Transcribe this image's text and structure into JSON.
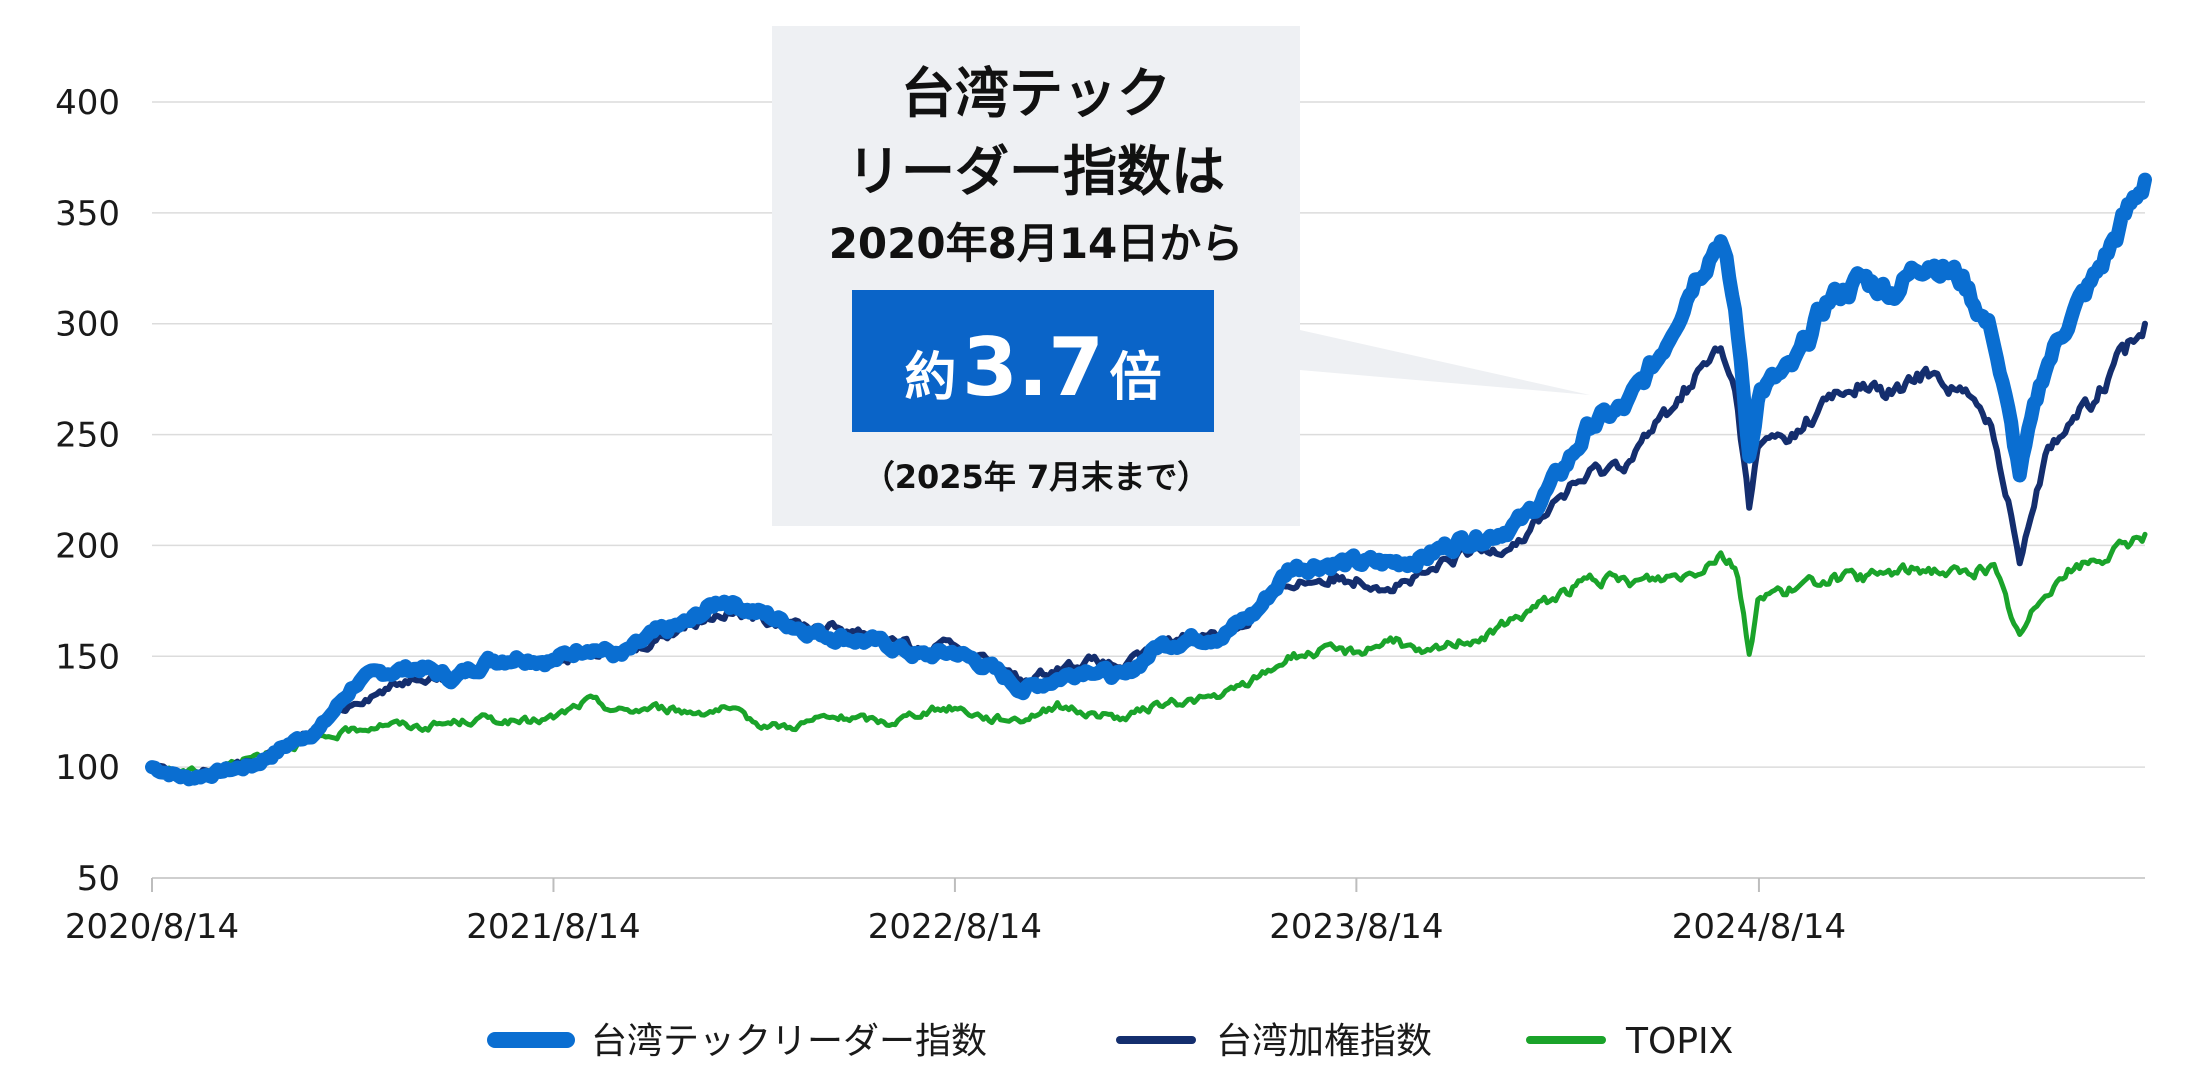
{
  "callout": {
    "line1": "台湾テック",
    "line2": "リーダー指数は",
    "line3": "2020年8月14日から",
    "badge_prefix": "約",
    "badge_value": "3.7",
    "badge_suffix": "倍",
    "note": "（2025年 7月末まで）",
    "badge_color": "#0a64c8",
    "box_color": "#eef0f3"
  },
  "chart_data": {
    "type": "line",
    "title": "",
    "xlabel": "",
    "ylabel": "",
    "ylim": [
      50,
      400
    ],
    "yticks": [
      50,
      100,
      150,
      200,
      250,
      300,
      350,
      400
    ],
    "xticks": [
      "2020/8/14",
      "2021/8/14",
      "2022/8/14",
      "2023/8/14",
      "2024/8/14"
    ],
    "x_range": [
      "2020/8/14",
      "2025/7/31"
    ],
    "grid": "horizontal",
    "legend_position": "bottom",
    "series": [
      {
        "name": "台湾テックリーダー指数",
        "color": "#0a6ed1",
        "points": [
          [
            "2020/8/14",
            100
          ],
          [
            "2020/9/15",
            95
          ],
          [
            "2020/10/15",
            98
          ],
          [
            "2020/11/15",
            101
          ],
          [
            "2020/12/15",
            110
          ],
          [
            "2021/1/15",
            118
          ],
          [
            "2021/2/15",
            138
          ],
          [
            "2021/3/15",
            143
          ],
          [
            "2021/4/15",
            145
          ],
          [
            "2021/5/15",
            140
          ],
          [
            "2021/6/15",
            148
          ],
          [
            "2021/7/15",
            150
          ],
          [
            "2021/8/14",
            148
          ],
          [
            "2021/9/15",
            155
          ],
          [
            "2021/10/15",
            150
          ],
          [
            "2021/11/15",
            160
          ],
          [
            "2021/12/15",
            165
          ],
          [
            "2022/1/15",
            176
          ],
          [
            "2022/2/15",
            170
          ],
          [
            "2022/3/15",
            165
          ],
          [
            "2022/4/15",
            160
          ],
          [
            "2022/5/15",
            158
          ],
          [
            "2022/6/15",
            155
          ],
          [
            "2022/7/15",
            150
          ],
          [
            "2022/8/14",
            152
          ],
          [
            "2022/9/15",
            145
          ],
          [
            "2022/10/15",
            135
          ],
          [
            "2022/11/15",
            140
          ],
          [
            "2022/12/15",
            145
          ],
          [
            "2023/1/15",
            140
          ],
          [
            "2023/2/15",
            155
          ],
          [
            "2023/3/15",
            158
          ],
          [
            "2023/4/15",
            160
          ],
          [
            "2023/5/15",
            170
          ],
          [
            "2023/6/15",
            190
          ],
          [
            "2023/7/15",
            192
          ],
          [
            "2023/8/14",
            192
          ],
          [
            "2023/9/15",
            192
          ],
          [
            "2023/10/15",
            195
          ],
          [
            "2023/11/15",
            202
          ],
          [
            "2023/12/15",
            205
          ],
          [
            "2024/1/15",
            212
          ],
          [
            "2024/2/15",
            232
          ],
          [
            "2024/3/15",
            255
          ],
          [
            "2024/4/15",
            262
          ],
          [
            "2024/5/15",
            285
          ],
          [
            "2024/6/15",
            320
          ],
          [
            "2024/7/10",
            340
          ],
          [
            "2024/7/25",
            300
          ],
          [
            "2024/8/5",
            240
          ],
          [
            "2024/8/14",
            270
          ],
          [
            "2024/9/15",
            280
          ],
          [
            "2024/10/15",
            310
          ],
          [
            "2024/11/15",
            320
          ],
          [
            "2024/12/15",
            315
          ],
          [
            "2025/1/15",
            330
          ],
          [
            "2025/2/15",
            320
          ],
          [
            "2025/3/15",
            295
          ],
          [
            "2025/4/8",
            232
          ],
          [
            "2025/5/1",
            280
          ],
          [
            "2025/5/20",
            300
          ],
          [
            "2025/6/15",
            320
          ],
          [
            "2025/7/10",
            345
          ],
          [
            "2025/7/31",
            365
          ]
        ]
      },
      {
        "name": "台湾加権指数",
        "color": "#142e6e",
        "points": [
          [
            "2020/8/14",
            100
          ],
          [
            "2020/9/15",
            96
          ],
          [
            "2020/10/15",
            99
          ],
          [
            "2020/11/15",
            103
          ],
          [
            "2020/12/15",
            110
          ],
          [
            "2021/1/15",
            118
          ],
          [
            "2021/2/15",
            130
          ],
          [
            "2021/3/15",
            135
          ],
          [
            "2021/4/15",
            142
          ],
          [
            "2021/5/15",
            140
          ],
          [
            "2021/6/15",
            146
          ],
          [
            "2021/7/15",
            148
          ],
          [
            "2021/8/14",
            148
          ],
          [
            "2021/9/15",
            152
          ],
          [
            "2021/10/15",
            150
          ],
          [
            "2021/11/15",
            158
          ],
          [
            "2021/12/15",
            165
          ],
          [
            "2022/1/15",
            170
          ],
          [
            "2022/2/15",
            168
          ],
          [
            "2022/3/15",
            165
          ],
          [
            "2022/4/15",
            163
          ],
          [
            "2022/5/15",
            162
          ],
          [
            "2022/6/15",
            158
          ],
          [
            "2022/7/15",
            152
          ],
          [
            "2022/8/14",
            155
          ],
          [
            "2022/9/15",
            148
          ],
          [
            "2022/10/15",
            138
          ],
          [
            "2022/11/15",
            145
          ],
          [
            "2022/12/15",
            148
          ],
          [
            "2023/1/15",
            145
          ],
          [
            "2023/2/15",
            155
          ],
          [
            "2023/3/15",
            160
          ],
          [
            "2023/4/15",
            160
          ],
          [
            "2023/5/15",
            168
          ],
          [
            "2023/6/15",
            183
          ],
          [
            "2023/7/15",
            185
          ],
          [
            "2023/8/14",
            185
          ],
          [
            "2023/9/15",
            182
          ],
          [
            "2023/10/15",
            186
          ],
          [
            "2023/11/15",
            195
          ],
          [
            "2023/12/15",
            198
          ],
          [
            "2024/1/15",
            205
          ],
          [
            "2024/2/15",
            222
          ],
          [
            "2024/3/15",
            232
          ],
          [
            "2024/4/15",
            238
          ],
          [
            "2024/5/15",
            255
          ],
          [
            "2024/6/15",
            275
          ],
          [
            "2024/7/10",
            288
          ],
          [
            "2024/7/25",
            265
          ],
          [
            "2024/8/5",
            218
          ],
          [
            "2024/8/14",
            245
          ],
          [
            "2024/9/15",
            250
          ],
          [
            "2024/10/15",
            265
          ],
          [
            "2024/11/15",
            272
          ],
          [
            "2024/12/15",
            268
          ],
          [
            "2025/1/15",
            278
          ],
          [
            "2025/2/15",
            270
          ],
          [
            "2025/3/15",
            252
          ],
          [
            "2025/4/8",
            195
          ],
          [
            "2025/5/1",
            240
          ],
          [
            "2025/5/20",
            255
          ],
          [
            "2025/6/15",
            265
          ],
          [
            "2025/7/10",
            285
          ],
          [
            "2025/7/31",
            300
          ]
        ]
      },
      {
        "name": "TOPIX",
        "color": "#1aa32a",
        "points": [
          [
            "2020/8/14",
            100
          ],
          [
            "2020/9/15",
            98
          ],
          [
            "2020/10/15",
            100
          ],
          [
            "2020/11/15",
            105
          ],
          [
            "2020/12/15",
            110
          ],
          [
            "2021/1/15",
            112
          ],
          [
            "2021/2/15",
            117
          ],
          [
            "2021/3/15",
            120
          ],
          [
            "2021/4/15",
            118
          ],
          [
            "2021/5/15",
            120
          ],
          [
            "2021/6/15",
            122
          ],
          [
            "2021/7/15",
            120
          ],
          [
            "2021/8/14",
            122
          ],
          [
            "2021/9/15",
            130
          ],
          [
            "2021/10/15",
            125
          ],
          [
            "2021/11/15",
            127
          ],
          [
            "2021/12/15",
            125
          ],
          [
            "2022/1/15",
            126
          ],
          [
            "2022/2/15",
            120
          ],
          [
            "2022/3/15",
            118
          ],
          [
            "2022/4/15",
            122
          ],
          [
            "2022/5/15",
            122
          ],
          [
            "2022/6/15",
            120
          ],
          [
            "2022/7/15",
            125
          ],
          [
            "2022/8/14",
            127
          ],
          [
            "2022/9/15",
            122
          ],
          [
            "2022/10/15",
            122
          ],
          [
            "2022/11/15",
            128
          ],
          [
            "2022/12/15",
            124
          ],
          [
            "2023/1/15",
            122
          ],
          [
            "2023/2/15",
            128
          ],
          [
            "2023/3/15",
            130
          ],
          [
            "2023/4/15",
            132
          ],
          [
            "2023/5/15",
            140
          ],
          [
            "2023/6/15",
            150
          ],
          [
            "2023/7/15",
            152
          ],
          [
            "2023/8/14",
            152
          ],
          [
            "2023/9/15",
            158
          ],
          [
            "2023/10/15",
            150
          ],
          [
            "2023/11/15",
            157
          ],
          [
            "2023/12/15",
            160
          ],
          [
            "2024/1/15",
            170
          ],
          [
            "2024/2/15",
            178
          ],
          [
            "2024/3/15",
            185
          ],
          [
            "2024/4/15",
            183
          ],
          [
            "2024/5/15",
            185
          ],
          [
            "2024/6/15",
            188
          ],
          [
            "2024/7/10",
            197
          ],
          [
            "2024/7/25",
            190
          ],
          [
            "2024/8/5",
            150
          ],
          [
            "2024/8/14",
            178
          ],
          [
            "2024/9/15",
            180
          ],
          [
            "2024/10/15",
            185
          ],
          [
            "2024/11/15",
            185
          ],
          [
            "2024/12/15",
            188
          ],
          [
            "2025/1/15",
            190
          ],
          [
            "2025/2/15",
            187
          ],
          [
            "2025/3/15",
            190
          ],
          [
            "2025/4/8",
            158
          ],
          [
            "2025/5/1",
            180
          ],
          [
            "2025/5/20",
            188
          ],
          [
            "2025/6/15",
            193
          ],
          [
            "2025/7/10",
            198
          ],
          [
            "2025/7/31",
            205
          ]
        ]
      }
    ]
  }
}
